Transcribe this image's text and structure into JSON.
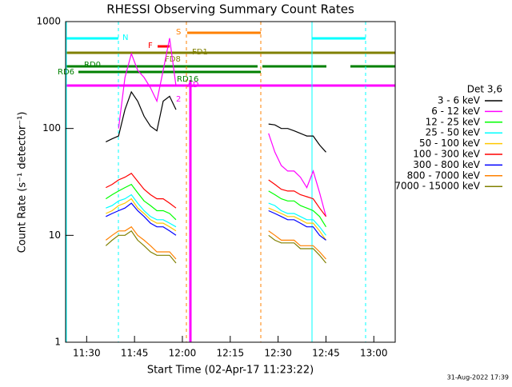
{
  "chart_data": {
    "type": "line",
    "title": "RHESSI Observing Summary Count Rates",
    "xlabel": "Start Time (02-Apr-17 11:23:22)",
    "ylabel": "Count Rate (s⁻¹ detector⁻¹)",
    "legend_title": "Det 3,6",
    "footer": "31-Aug-2022 17:39",
    "log_y": true,
    "legend": "right",
    "xlim": [
      683.4,
      786.7
    ],
    "ylim": [
      1,
      1000
    ],
    "yticks": [
      1,
      10,
      100,
      1000
    ],
    "xticks": [
      {
        "value": 690,
        "label": "11:30"
      },
      {
        "value": 705,
        "label": "11:45"
      },
      {
        "value": 720,
        "label": "12:00"
      },
      {
        "value": 735,
        "label": "12:15"
      },
      {
        "value": 750,
        "label": "12:30"
      },
      {
        "value": 765,
        "label": "12:45"
      },
      {
        "value": 780,
        "label": "13:00"
      }
    ],
    "annotations": [
      "N",
      "S",
      "F",
      "FD1",
      "FD8",
      "RD0",
      "RD6",
      "RD16",
      "AD",
      "2"
    ],
    "x": [
      696,
      698,
      700,
      702,
      704,
      706,
      708,
      710,
      712,
      714,
      716,
      718,
      730,
      747,
      749,
      751,
      753,
      755,
      757,
      759,
      761,
      763,
      765
    ],
    "series": [
      {
        "name": "3 - 6 keV",
        "color": "#000000",
        "values": [
          75,
          80,
          85,
          150,
          220,
          180,
          130,
          105,
          95,
          180,
          200,
          150,
          null,
          110,
          108,
          100,
          100,
          95,
          90,
          85,
          85,
          70,
          60
        ]
      },
      {
        "name": "6 - 12 keV",
        "color": "#ff00ff",
        "values": [
          null,
          null,
          100,
          300,
          500,
          350,
          300,
          240,
          180,
          350,
          700,
          250,
          null,
          90,
          60,
          45,
          40,
          40,
          35,
          28,
          40,
          25,
          15
        ]
      },
      {
        "name": "12 - 25 keV",
        "color": "#00ff00",
        "values": [
          22,
          24,
          26,
          28,
          30,
          25,
          21,
          19,
          17,
          17,
          16,
          14,
          null,
          26,
          24,
          22,
          21,
          21,
          19,
          18,
          17,
          15,
          12
        ]
      },
      {
        "name": "25 - 50 keV",
        "color": "#00ffff",
        "values": [
          18,
          19,
          21,
          22,
          24,
          20,
          17,
          15,
          14,
          14,
          13,
          12,
          null,
          20,
          19,
          17,
          16,
          16,
          15,
          14,
          14,
          12,
          10
        ]
      },
      {
        "name": "50 - 100 keV",
        "color": "#ffc800",
        "values": [
          16,
          17,
          19,
          20,
          22,
          18,
          16,
          14,
          13,
          13,
          12,
          11,
          null,
          18,
          17,
          16,
          15,
          15,
          14,
          13,
          13,
          11,
          9
        ]
      },
      {
        "name": "100 - 300 keV",
        "color": "#ff0000",
        "values": [
          28,
          30,
          33,
          35,
          38,
          32,
          27,
          24,
          22,
          22,
          20,
          18,
          null,
          33,
          30,
          27,
          26,
          26,
          24,
          23,
          22,
          18,
          15
        ]
      },
      {
        "name": "300 - 800 keV",
        "color": "#0000ff",
        "values": [
          15,
          16,
          17,
          18,
          20,
          17,
          15,
          13,
          12,
          12,
          11,
          10,
          null,
          17,
          16,
          15,
          14,
          14,
          13,
          12,
          12,
          10,
          9
        ]
      },
      {
        "name": "800 - 7000 keV",
        "color": "#ff8000",
        "values": [
          9,
          10,
          11,
          11,
          12,
          10,
          9,
          8,
          7,
          7,
          7,
          6,
          null,
          11,
          10,
          9,
          9,
          9,
          8,
          8,
          8,
          7,
          6
        ]
      },
      {
        "name": "7000 - 15000 keV",
        "color": "#808000",
        "values": [
          8,
          9,
          10,
          10,
          11,
          9,
          8,
          7,
          6.5,
          6.5,
          6.5,
          5.5,
          null,
          10,
          9,
          8.5,
          8.5,
          8.5,
          7.5,
          7.5,
          7.5,
          6.5,
          5.5
        ]
      }
    ]
  }
}
